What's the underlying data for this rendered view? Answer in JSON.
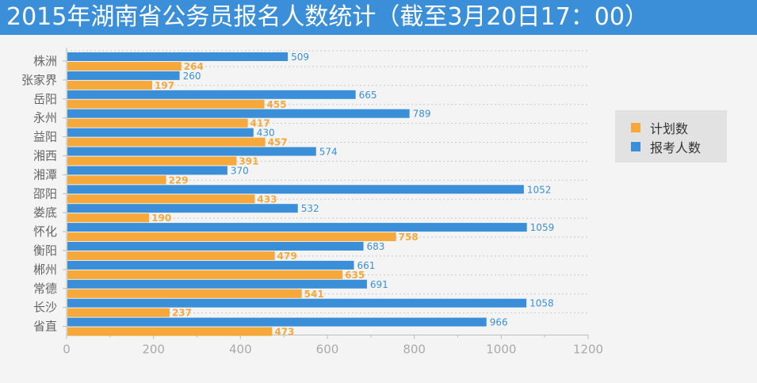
{
  "title": "2015年湖南省公务员报名人数统计（截至3月20日17：00）",
  "colors": {
    "title_bg": "#3a8fd8",
    "plan": "#f7a83a",
    "applicants": "#3a8fd8",
    "legend_bg": "#e2e2e2",
    "background": "#f4f4f4",
    "grid": "#c8c8c8",
    "axis_text": "#aaaaaa",
    "category_text": "#666666"
  },
  "legend": [
    {
      "label": "计划数",
      "color": "#f7a83a"
    },
    {
      "label": "报考人数",
      "color": "#3a8fd8"
    }
  ],
  "chart_data": {
    "type": "bar",
    "orientation": "horizontal",
    "title": "2015年湖南省公务员报名人数统计（截至3月20日17：00）",
    "categories": [
      "株洲",
      "张家界",
      "岳阳",
      "永州",
      "益阳",
      "湘西",
      "湘潭",
      "邵阳",
      "娄底",
      "怀化",
      "衡阳",
      "郴州",
      "常德",
      "长沙",
      "省直"
    ],
    "series": [
      {
        "name": "报考人数",
        "values": [
          509,
          260,
          665,
          789,
          430,
          574,
          370,
          1052,
          532,
          1059,
          683,
          661,
          691,
          1058,
          966
        ]
      },
      {
        "name": "计划数",
        "values": [
          264,
          197,
          455,
          417,
          457,
          391,
          229,
          433,
          190,
          758,
          479,
          635,
          541,
          237,
          473
        ]
      }
    ],
    "xlim": [
      0,
      1200
    ],
    "xticks": [
      0,
      200,
      400,
      600,
      800,
      1000,
      1200
    ],
    "grid": true,
    "legend_position": "right"
  }
}
